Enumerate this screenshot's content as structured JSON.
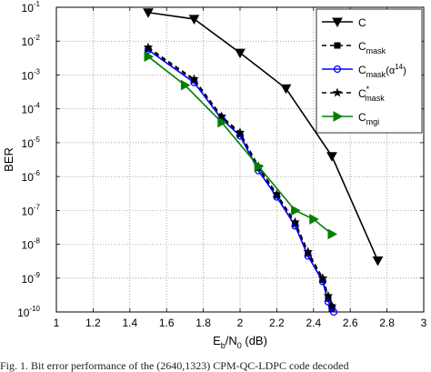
{
  "caption": "Fig. 1.   Bit error performance of the (2640,1323) CPM-QC-LDPC code decoded",
  "chart_data": {
    "type": "line",
    "xlabel_base": "E",
    "xlabel_sub1": "b",
    "xlabel_mid": "/N",
    "xlabel_sub2": "0",
    "xlabel_tail": " (dB)",
    "ylabel": "BER",
    "xlim": [
      1,
      3
    ],
    "ylim": [
      1e-10,
      0.1
    ],
    "yscale": "log",
    "grid": true,
    "legend_position": "top-right",
    "x_tick_labels": [
      "1",
      "1.2",
      "1.4",
      "1.6",
      "1.8",
      "2",
      "2.2",
      "2.4",
      "2.6",
      "2.8",
      "3"
    ],
    "y_tick_labels": [
      {
        "base": "10",
        "exp": "-1"
      },
      {
        "base": "10",
        "exp": "-2"
      },
      {
        "base": "10",
        "exp": "-3"
      },
      {
        "base": "10",
        "exp": "-4"
      },
      {
        "base": "10",
        "exp": "-5"
      },
      {
        "base": "10",
        "exp": "-6"
      },
      {
        "base": "10",
        "exp": "-7"
      },
      {
        "base": "10",
        "exp": "-8"
      },
      {
        "base": "10",
        "exp": "-9"
      },
      {
        "base": "10",
        "exp": "-10"
      }
    ],
    "series": [
      {
        "name": "C",
        "legend_main": "C",
        "legend_sub": "",
        "legend_sup": "",
        "color": "#000000",
        "dash": "",
        "marker": "triangle-down",
        "x": [
          1.5,
          1.75,
          2.0,
          2.25,
          2.5,
          2.75
        ],
        "y": [
          0.07,
          0.045,
          0.0045,
          0.0004,
          4e-06,
          3.3e-09
        ]
      },
      {
        "name": "C_mask",
        "legend_main": "C",
        "legend_sub": "mask",
        "legend_sup": "",
        "color": "#000000",
        "dash": "5,4",
        "marker": "square",
        "x": [
          1.5,
          1.75,
          1.9,
          2.0,
          2.1,
          2.2,
          2.3,
          2.37,
          2.45,
          2.48,
          2.5
        ],
        "y": [
          0.006,
          0.0007,
          5.5e-05,
          1.8e-05,
          1.8e-06,
          2.8e-07,
          4e-08,
          5.3e-09,
          9e-10,
          2.5e-10,
          1.25e-10
        ]
      },
      {
        "name": "C_mask(α14)",
        "legend_main": "C",
        "legend_sub": "mask",
        "legend_sup": "(α",
        "legend_sup2": "14",
        "legend_tail": ")",
        "color": "#0000ff",
        "dash": "",
        "marker": "circle",
        "x": [
          1.5,
          1.75,
          1.9,
          2.0,
          2.1,
          2.2,
          2.3,
          2.37,
          2.45,
          2.48,
          2.5,
          2.51
        ],
        "y": [
          0.0055,
          0.0006,
          5e-05,
          1.6e-05,
          1.5e-06,
          2.5e-07,
          3.5e-08,
          4.5e-09,
          8e-10,
          2e-10,
          1.4e-10,
          1e-10
        ]
      },
      {
        "name": "C*_mask",
        "legend_main": "C",
        "legend_sub": "mask",
        "legend_sup": "*",
        "color": "#000000",
        "dash": "5,4",
        "marker": "star",
        "x": [
          1.5,
          1.75,
          1.9,
          2.0,
          2.1,
          2.2,
          2.3,
          2.37,
          2.45,
          2.48,
          2.5
        ],
        "y": [
          0.0065,
          0.00075,
          6e-05,
          2e-05,
          2e-06,
          3e-07,
          4.5e-08,
          6e-09,
          1e-09,
          3e-10,
          1.5e-10
        ]
      },
      {
        "name": "C_mgi",
        "legend_main": "C",
        "legend_sub": "mgi",
        "legend_sup": "",
        "color": "#008000",
        "dash": "",
        "marker": "triangle-right",
        "x": [
          1.5,
          1.7,
          1.9,
          2.1,
          2.3,
          2.4,
          2.5
        ],
        "y": [
          0.0035,
          0.0005,
          4e-05,
          2e-06,
          1e-07,
          5.5e-08,
          2e-08
        ]
      }
    ]
  }
}
